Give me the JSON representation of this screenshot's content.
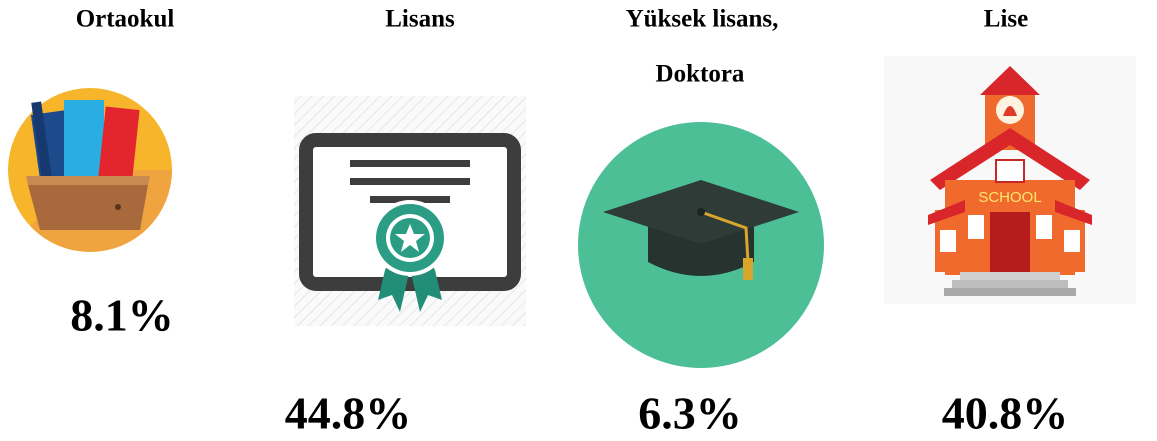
{
  "items": [
    {
      "label": [
        "Ortaokul"
      ],
      "value": "8.1%"
    },
    {
      "label": [
        "Lisans"
      ],
      "value": "44.8%"
    },
    {
      "label": [
        "Yüksek lisans,",
        "Doktora"
      ],
      "value": "6.3%"
    },
    {
      "label": [
        "Lise"
      ],
      "value": "40.8%"
    }
  ]
}
